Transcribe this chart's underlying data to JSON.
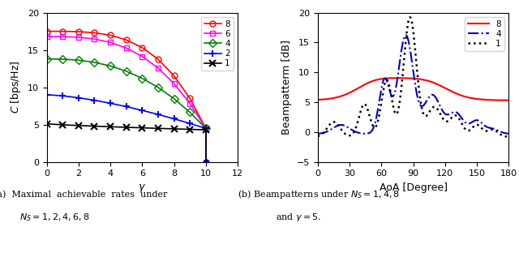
{
  "left_plot": {
    "xlabel": "$\\gamma$",
    "ylabel": "$C$ [bps/Hz]",
    "xlim": [
      0,
      12
    ],
    "ylim": [
      0,
      20
    ],
    "xticks": [
      0,
      2,
      4,
      6,
      8,
      10,
      12
    ],
    "yticks": [
      0,
      5,
      10,
      15,
      20
    ],
    "series": [
      {
        "ns": 8,
        "color": "#ff0000",
        "marker": "o",
        "base": 17.5,
        "flat_end": 16.5,
        "end_val": 4.5
      },
      {
        "ns": 6,
        "color": "#ff00ff",
        "marker": "s",
        "base": 16.8,
        "flat_end": 15.8,
        "end_val": 4.5
      },
      {
        "ns": 4,
        "color": "#008000",
        "marker": "D",
        "base": 13.8,
        "flat_end": 13.5,
        "end_val": 4.5
      },
      {
        "ns": 2,
        "color": "#0000ff",
        "marker": "+",
        "base": 9.0,
        "flat_end": 9.0,
        "end_val": 4.5
      },
      {
        "ns": 1,
        "color": "#000000",
        "marker": "x",
        "base": 5.1,
        "flat_end": 5.1,
        "end_val": 4.3
      }
    ]
  },
  "right_plot": {
    "xlabel": "AoA [Degree]",
    "ylabel": "Beampatterm [dB]",
    "xlim": [
      0,
      180
    ],
    "ylim": [
      -5,
      20
    ],
    "xticks": [
      0,
      30,
      60,
      90,
      120,
      150,
      180
    ],
    "yticks": [
      -5,
      0,
      5,
      10,
      15,
      20
    ]
  },
  "cap_a": "(a)  Maximal  achievable  rates  under",
  "cap_a2": "$N_S = 1, 2, 4, 6, 8$",
  "cap_b": "(b) Beampatterns under $N_S = 1, 4, 8$",
  "cap_b2": "and $\\gamma = 5$."
}
